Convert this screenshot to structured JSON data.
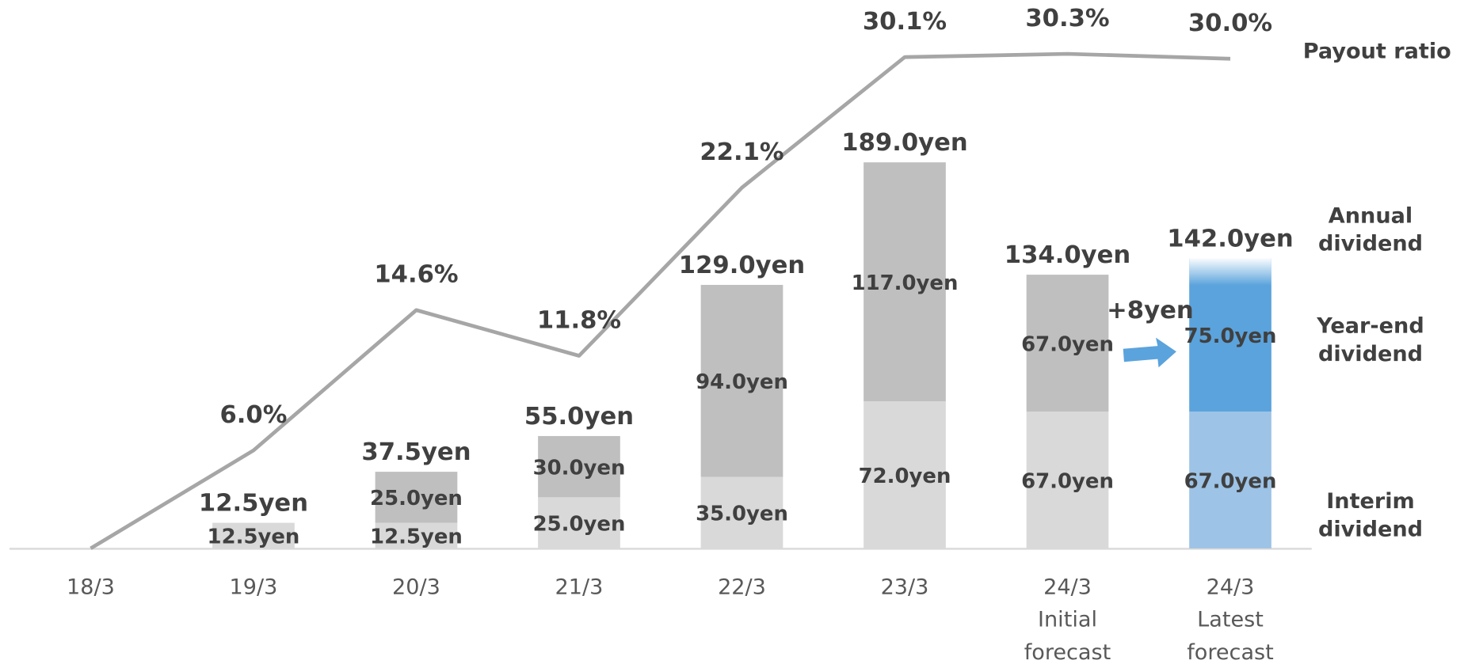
{
  "chart_data": {
    "type": "stacked_bar_line",
    "categories": [
      "18/3",
      "19/3",
      "20/3",
      "21/3",
      "22/3",
      "23/3",
      "24/3 Initial forecast",
      "24/3 Latest forecast"
    ],
    "ylim": [
      0,
      200
    ],
    "y2lim": [
      0,
      32
    ],
    "series": [
      {
        "name": "Interim dividend",
        "colors": [
          "#d9d9d9",
          "#d9d9d9",
          "#d9d9d9",
          "#d9d9d9",
          "#d9d9d9",
          "#d9d9d9",
          "#d9d9d9",
          "#9dc3e6"
        ],
        "values": [
          null,
          12.5,
          12.5,
          25.0,
          35.0,
          72.0,
          67.0,
          67.0
        ],
        "value_labels": [
          null,
          "12.5yen",
          "12.5yen",
          "25.0yen",
          "35.0yen",
          "72.0yen",
          "67.0yen",
          "67.0yen"
        ]
      },
      {
        "name": "Year-end dividend",
        "colors": [
          "#bfbfbf",
          "#bfbfbf",
          "#bfbfbf",
          "#bfbfbf",
          "#bfbfbf",
          "#bfbfbf",
          "#bfbfbf",
          "#5ba3dc"
        ],
        "values": [
          null,
          null,
          25.0,
          30.0,
          94.0,
          117.0,
          67.0,
          75.0
        ],
        "value_labels": [
          null,
          null,
          "25.0yen",
          "30.0yen",
          "94.0yen",
          "117.0yen",
          "67.0yen",
          "75.0yen"
        ]
      },
      {
        "name": "Payout ratio",
        "type": "line",
        "axis": "y2",
        "color": "#a6a6a6",
        "values": [
          0,
          6.0,
          14.6,
          11.8,
          22.1,
          30.1,
          30.3,
          30.0
        ],
        "value_labels": [
          null,
          "6.0%",
          "14.6%",
          "11.8%",
          "22.1%",
          "30.1%",
          "30.3%",
          "30.0%"
        ]
      }
    ],
    "totals": {
      "name": "Annual dividend",
      "values": [
        null,
        12.5,
        37.5,
        55.0,
        129.0,
        189.0,
        134.0,
        142.0
      ],
      "value_labels": [
        null,
        "12.5yen",
        "37.5yen",
        "55.0yen",
        "129.0yen",
        "189.0yen",
        "134.0yen",
        "142.0yen"
      ]
    },
    "annotations": [
      {
        "text": "+8yen"
      }
    ]
  }
}
